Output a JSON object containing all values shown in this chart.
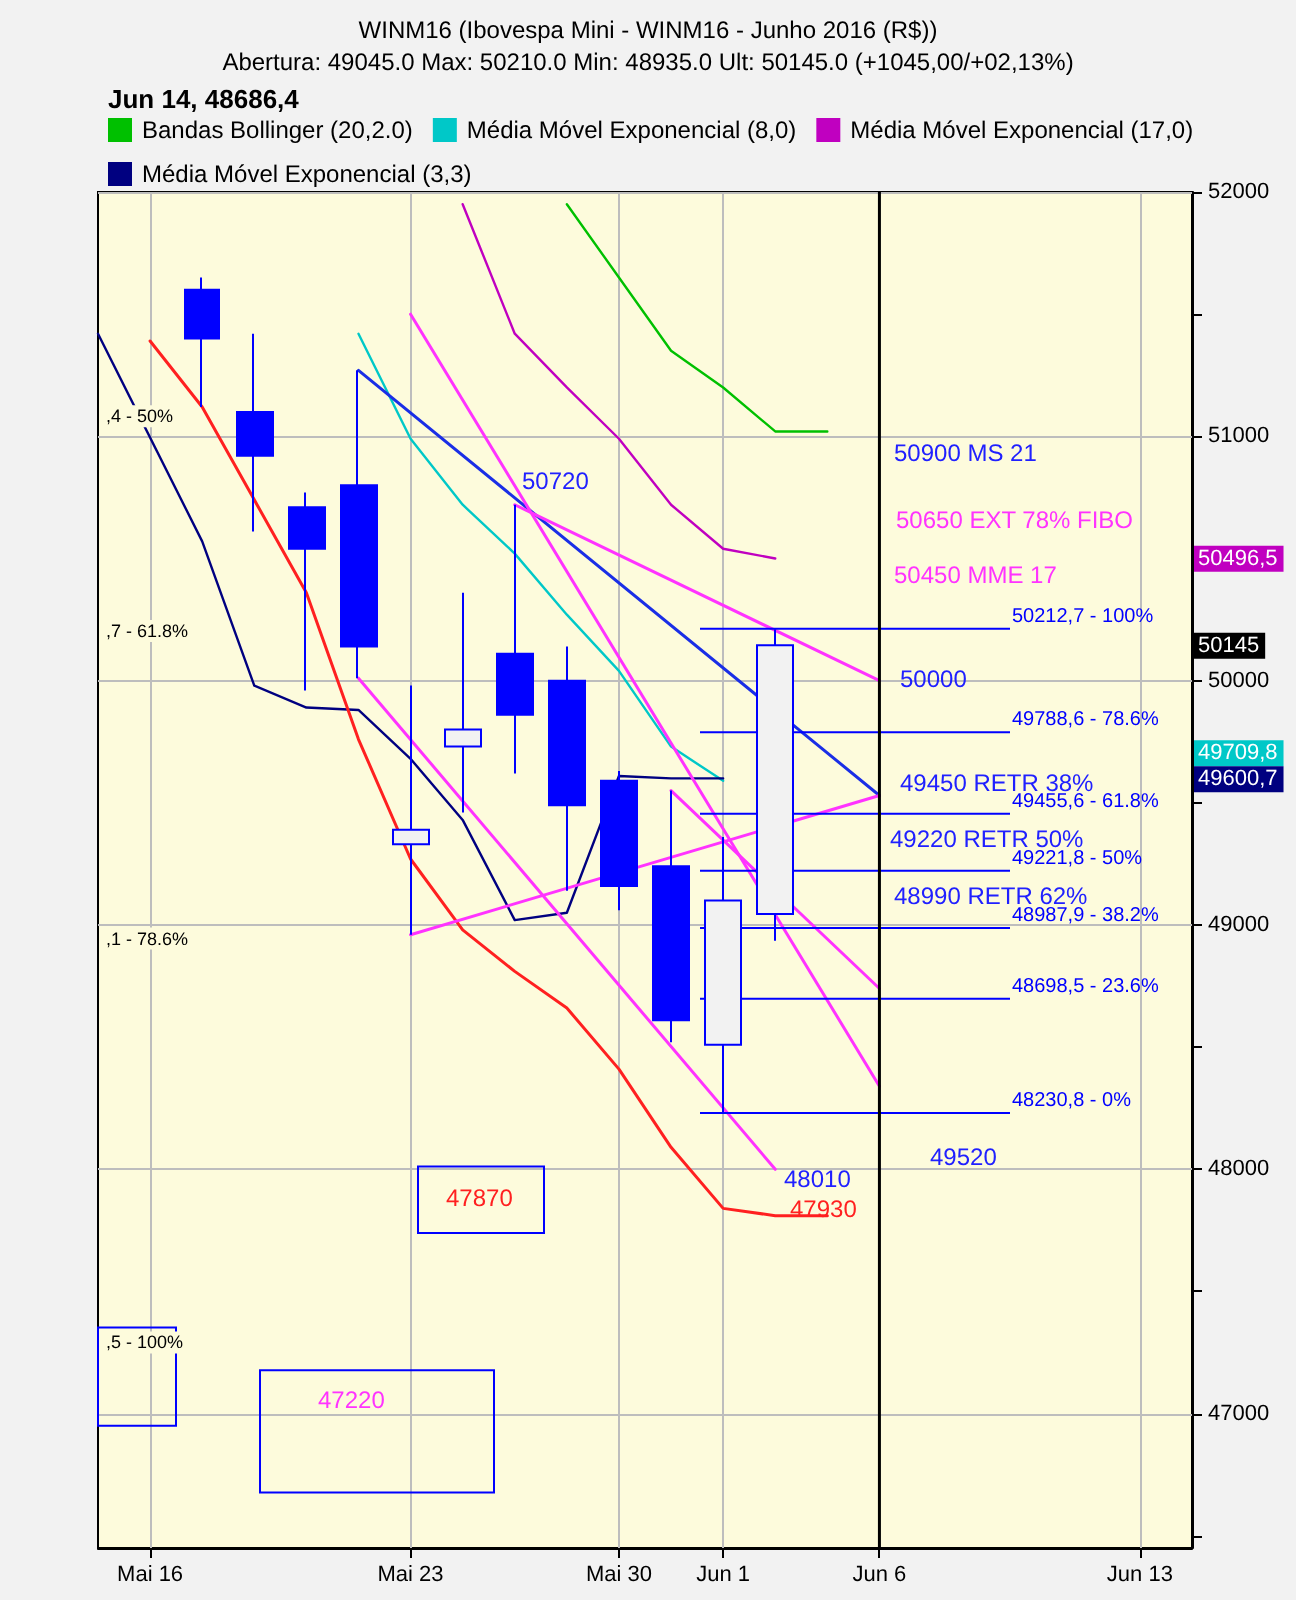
{
  "chart_data": {
    "type": "candlestick",
    "title": "WINM16 (Ibovespa Mini - WINM16 - Junho 2016 (R$))",
    "subtitle": "Abertura: 49045.0 Max: 50210.0 Min: 48935.0 Ult: 50145.0 (+1045,00/+02,13%)",
    "legend_title": "Jun 14, 48686,4",
    "categories": [
      null,
      "Mai 16",
      null,
      null,
      null,
      null,
      "Mai 23",
      null,
      null,
      null,
      "Mai 30",
      null,
      "Jun 1",
      null,
      null,
      "Jun 6",
      null,
      null,
      null,
      null,
      "Jun 13",
      null
    ],
    "color": "#0000ff",
    "ohlc": [
      null,
      null,
      [
        51600,
        51650,
        51120,
        51400
      ],
      [
        51100,
        51420,
        50610,
        50920
      ],
      [
        50710,
        50770,
        49960,
        50540
      ],
      [
        50800,
        51270,
        50010,
        50140
      ],
      [
        49330,
        49980,
        48960,
        49390
      ],
      [
        49730,
        50360,
        49460,
        49800
      ],
      [
        50110,
        50720,
        49620,
        49860
      ],
      [
        50000,
        50140,
        49140,
        49490
      ],
      [
        49590,
        49630,
        49060,
        49160
      ],
      [
        49240,
        49550,
        48520,
        48610
      ],
      [
        48510,
        49360,
        48230,
        49100
      ],
      [
        49045,
        50210,
        48935,
        50145
      ],
      null,
      null,
      null,
      null,
      null,
      null,
      null,
      null
    ],
    "series": [
      {
        "type": "line",
        "name": "Bandas Bollinger (20,2.0)",
        "color": "#00c000",
        "values": [
          null,
          null,
          null,
          null,
          null,
          null,
          null,
          null,
          null,
          51950,
          51650,
          51350,
          51200,
          51020,
          51020,
          null,
          null,
          null,
          null,
          null,
          null,
          null
        ]
      },
      {
        "type": "line",
        "name": "Média Móvel Exponencial (8,0)",
        "color": "#00c8c8",
        "values": [
          null,
          null,
          null,
          null,
          null,
          51420,
          50990,
          50720,
          50520,
          50270,
          50040,
          49730,
          49590,
          null,
          null,
          null,
          null,
          null,
          null,
          null,
          null,
          null
        ]
      },
      {
        "type": "line",
        "name": "Média Móvel Exponencial (17,0)",
        "color": "#c000c0",
        "values": [
          null,
          null,
          null,
          null,
          null,
          null,
          null,
          51950,
          51420,
          51200,
          50990,
          50720,
          50540,
          50500,
          null,
          null,
          null,
          null,
          null,
          null,
          null,
          null
        ]
      },
      {
        "type": "line",
        "name": "Média Móvel Exponencial (3,3)",
        "color": "#000080",
        "values": [
          51420,
          null,
          50570,
          49980,
          49890,
          49880,
          49680,
          49430,
          49020,
          49050,
          49610,
          49600,
          49600,
          null,
          null,
          null,
          null,
          null,
          null,
          null,
          null,
          null
        ]
      },
      {
        "type": "line",
        "color": "#ff2020",
        "values": [
          null,
          51390,
          51120,
          50740,
          50360,
          49760,
          49270,
          48980,
          48810,
          48660,
          48410,
          48090,
          47840,
          47810,
          47810,
          null,
          null,
          null,
          null,
          null,
          null,
          null
        ]
      },
      {
        "type": "line",
        "color": "#1a2ee6",
        "values": [
          null,
          null,
          null,
          null,
          null,
          51270,
          null,
          null,
          null,
          null,
          null,
          null,
          null,
          null,
          null,
          49530,
          null,
          null,
          null,
          null,
          null,
          null
        ]
      },
      {
        "type": "line",
        "color": "#ff33ff",
        "values": [
          null,
          null,
          null,
          null,
          null,
          null,
          48960,
          null,
          null,
          null,
          null,
          null,
          null,
          null,
          null,
          49530,
          null,
          null,
          null,
          null,
          null,
          null
        ]
      },
      {
        "type": "line",
        "color": "#ff33ff",
        "values": [
          null,
          null,
          null,
          null,
          null,
          null,
          null,
          null,
          50720,
          null,
          null,
          null,
          null,
          null,
          null,
          50000,
          null,
          null,
          null,
          null,
          null,
          null
        ]
      },
      {
        "type": "line",
        "color": "#ff33ff",
        "values": [
          null,
          null,
          null,
          null,
          null,
          null,
          51500,
          null,
          null,
          null,
          null,
          null,
          null,
          null,
          null,
          48340,
          null,
          null,
          null,
          null,
          null,
          null
        ]
      },
      {
        "type": "line",
        "color": "#ff33ff",
        "values": [
          null,
          null,
          null,
          null,
          null,
          50010,
          null,
          null,
          null,
          null,
          null,
          null,
          null,
          48000,
          null,
          null,
          null,
          null,
          null,
          null,
          null,
          null
        ]
      },
      {
        "type": "line",
        "color": "#ff33ff",
        "values": [
          null,
          null,
          null,
          null,
          null,
          null,
          null,
          null,
          null,
          null,
          null,
          49550,
          null,
          null,
          null,
          48740,
          null,
          null,
          null,
          null,
          null,
          null
        ]
      }
    ],
    "ylim": [
      46450,
      52000
    ],
    "yticks": [
      {
        "value": 46500,
        "label": null
      },
      47000,
      {
        "value": 47500,
        "label": null
      },
      48000,
      {
        "value": 48500,
        "label": null
      },
      49000,
      {
        "value": 49500,
        "label": null
      },
      50000,
      {
        "value": 50500,
        "label": null
      },
      51000,
      {
        "value": 51500,
        "label": null
      },
      52000
    ],
    "grid": true,
    "legend": "top left",
    "marker": "none",
    "ref_lines": [
      {
        "axis": "y",
        "value": 50212.7,
        "label": "50212,7 - 100%",
        "color": "#0000ff"
      },
      {
        "axis": "y",
        "value": 49788.6,
        "label": "49788,6 - 78.6%",
        "color": "#0000ff"
      },
      {
        "axis": "y",
        "value": 49455.6,
        "label": "49455,6 - 61.8%",
        "color": "#0000ff"
      },
      {
        "axis": "y",
        "value": 49221.8,
        "label": "49221,8 - 50%",
        "color": "#0000ff"
      },
      {
        "axis": "y",
        "value": 48987.9,
        "label": "48987,9 - 38.2%",
        "color": "#0000ff"
      },
      {
        "axis": "y",
        "value": 48698.5,
        "label": "48698,5 - 23.6%",
        "color": "#0000ff"
      },
      {
        "axis": "y",
        "value": 48230.8,
        "label": "48230,8 - 0%",
        "color": "#0000ff"
      },
      {
        "axis": "x",
        "value": "Jun 6",
        "color": "#000000"
      }
    ],
    "annotations": [
      ",4 - 50%",
      ",7 - 61.8%",
      ",1 - 78.6%",
      ",5 - 100%",
      "50720",
      "50900 MS 21",
      "50650 EXT 78% FIBO",
      "50450 MME 17",
      "50000",
      "49450 RETR 38%",
      "49220 RETR 50%",
      "48990 RETR 62%",
      "48010",
      "47930",
      "49520",
      "47870",
      "47220",
      "50496,5",
      "50145",
      "49709,8",
      "49600,7"
    ]
  }
}
